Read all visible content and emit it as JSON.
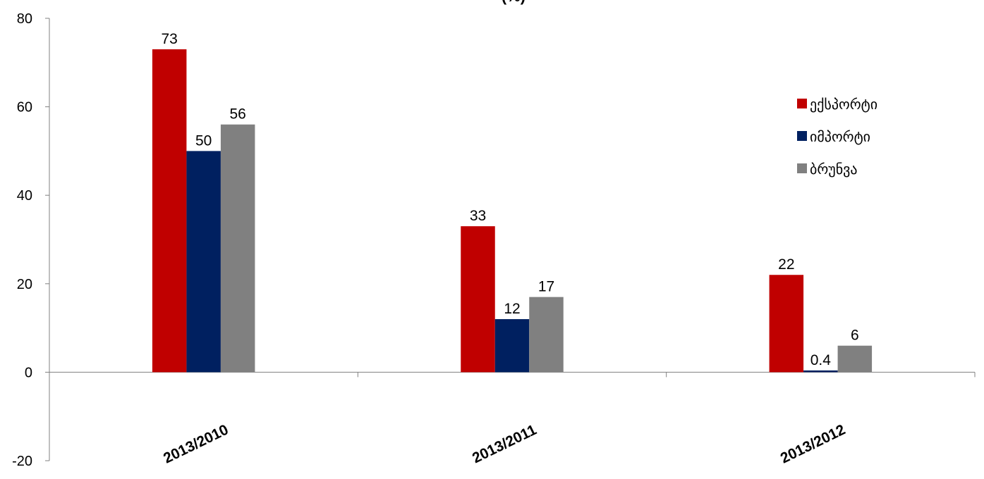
{
  "chart_data": {
    "type": "bar",
    "title": "(%)",
    "categories": [
      "2013/2010",
      "2013/2011",
      "2013/2012"
    ],
    "series": [
      {
        "name": "ექსპორტი",
        "color": "#C00000",
        "values": [
          73,
          33,
          22
        ],
        "labels": [
          "73",
          "33",
          "22"
        ]
      },
      {
        "name": "იმპორტი",
        "color": "#002060",
        "values": [
          50,
          12,
          0.4
        ],
        "labels": [
          "50",
          "12",
          "0.4"
        ]
      },
      {
        "name": "ბრუნვა",
        "color": "#808080",
        "values": [
          56,
          17,
          6
        ],
        "labels": [
          "56",
          "17",
          "6"
        ]
      }
    ],
    "ylim": [
      -20,
      80
    ],
    "yticks": [
      "80",
      "60",
      "40",
      "20",
      "0",
      "-20"
    ],
    "grid": false,
    "legend": "right"
  }
}
